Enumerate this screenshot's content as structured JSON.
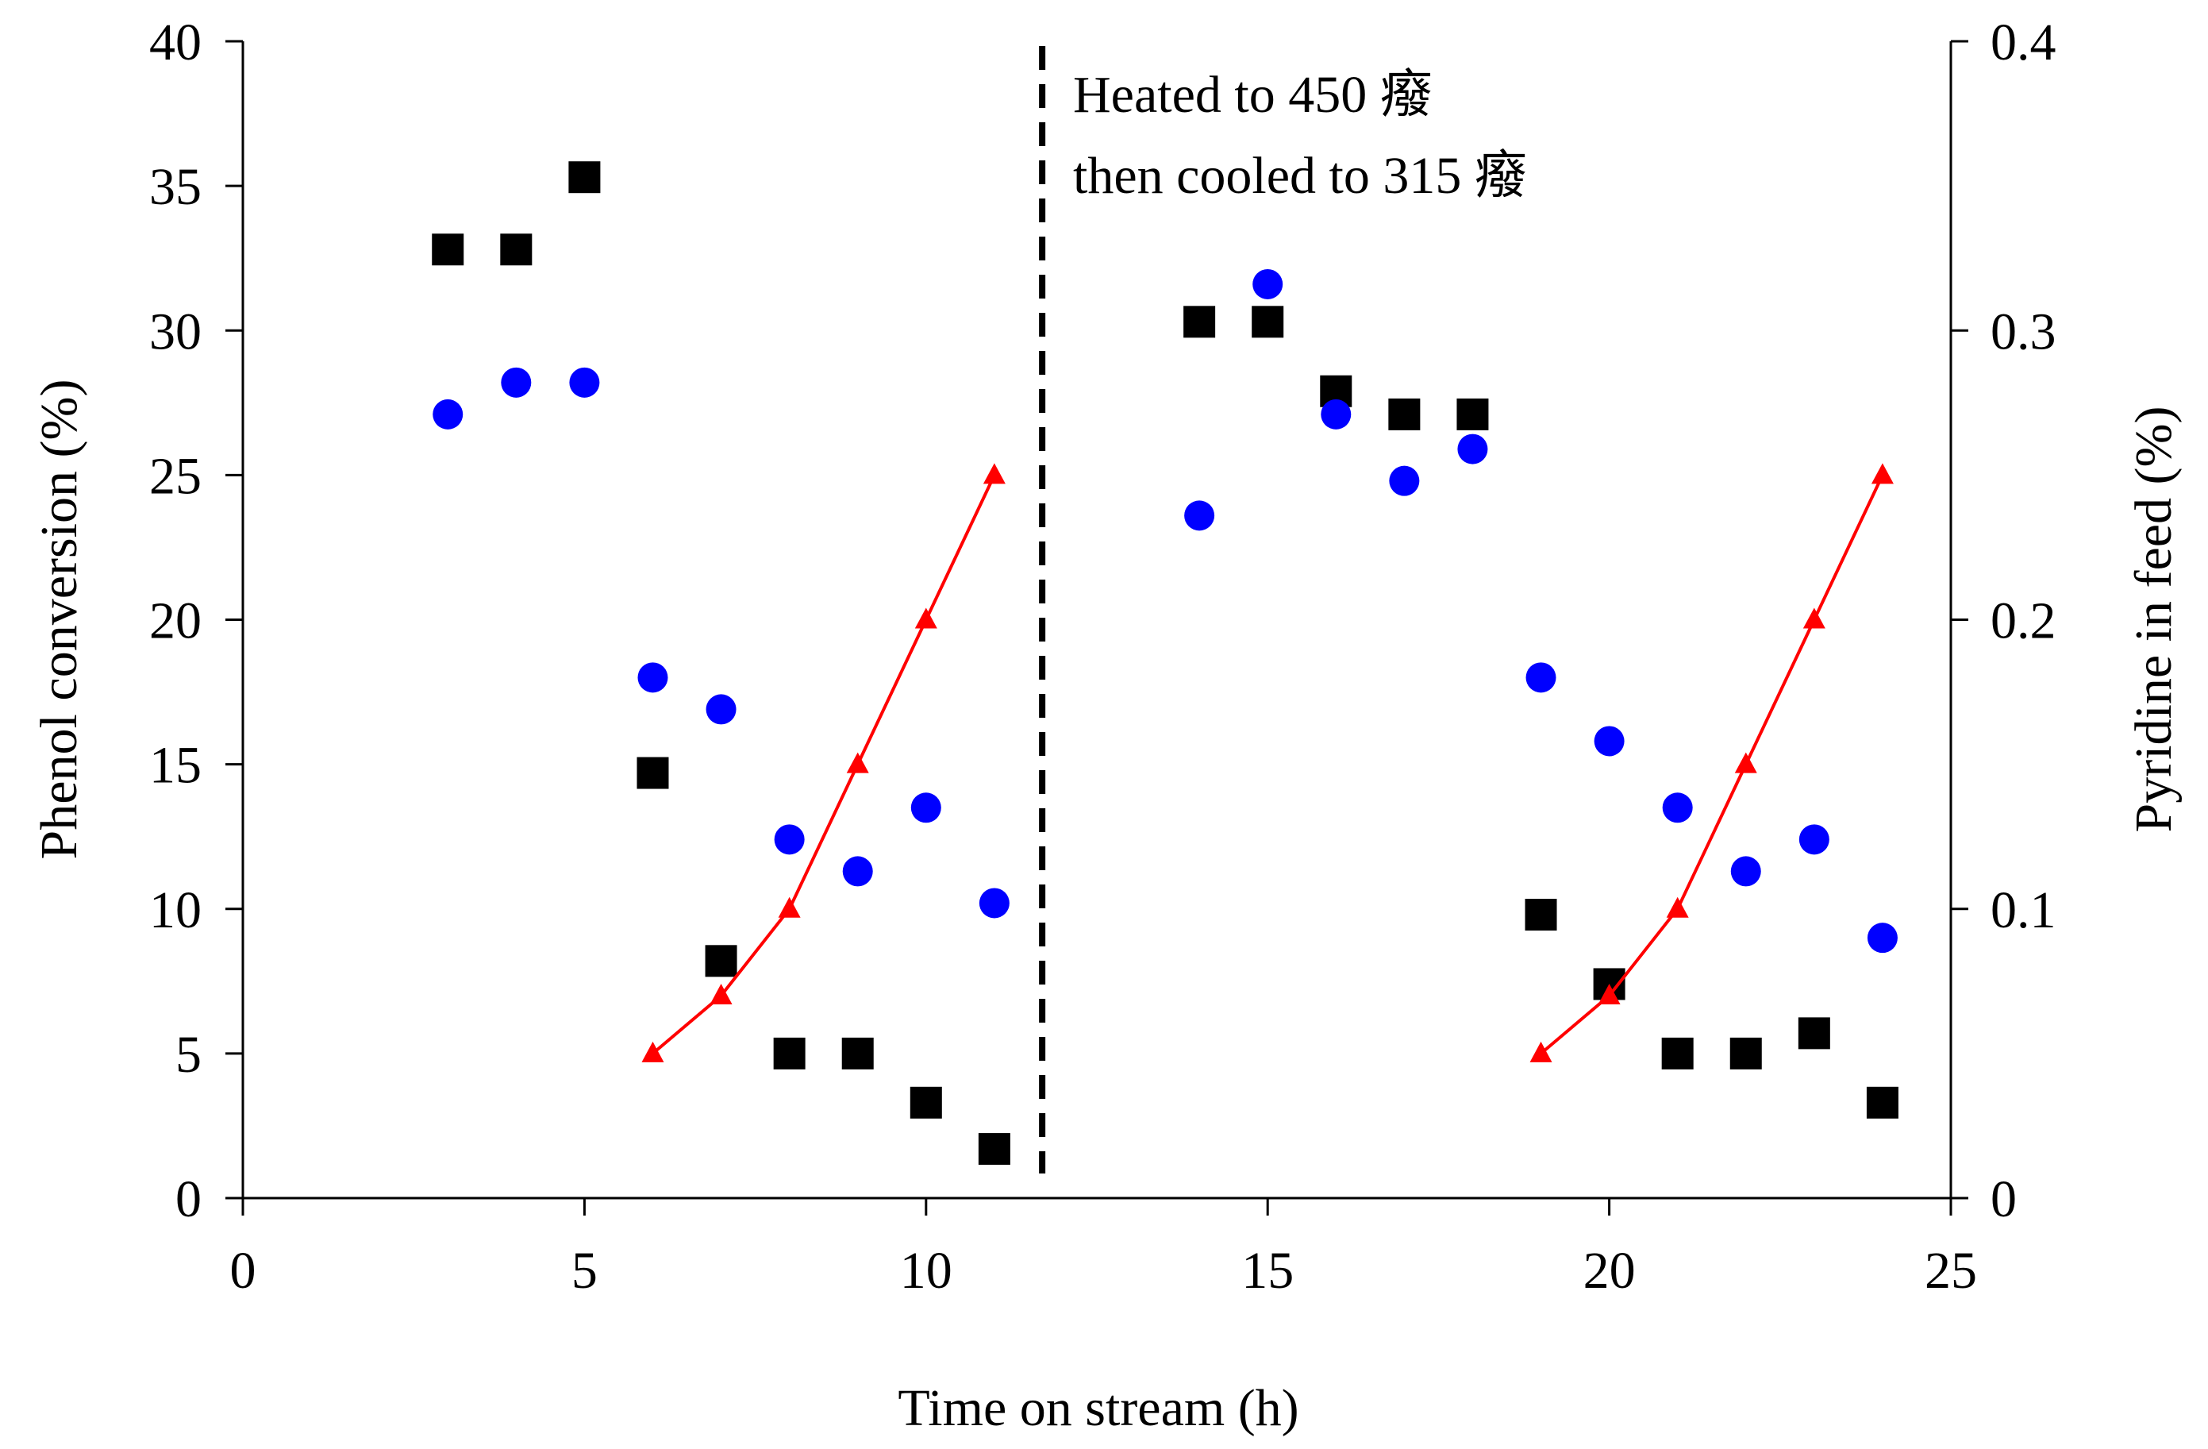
{
  "chart_data": {
    "type": "scatter",
    "x_axis": {
      "label": "Time on stream (h)",
      "range": [
        0,
        25
      ],
      "ticks": [
        0,
        5,
        10,
        15,
        20,
        25
      ]
    },
    "y_axis_left": {
      "label": "Phenol conversion (%)",
      "range": [
        0,
        40
      ],
      "ticks": [
        0,
        5,
        10,
        15,
        20,
        25,
        30,
        35,
        40
      ]
    },
    "y_axis_right": {
      "label": "Pyridine in feed (%)",
      "range": [
        0,
        0.4
      ],
      "ticks": [
        "0",
        "0.1",
        "0.2",
        "0.3",
        "0.4"
      ]
    },
    "vertical_marker": {
      "x": 11.7,
      "style": "dashed"
    },
    "annotation": [
      "Heated to 450 癈",
      "then cooled to 315 癈"
    ],
    "grid": false,
    "legend": "none",
    "series": [
      {
        "marker": "square",
        "color": "#000000",
        "axis": "left",
        "points": [
          [
            3,
            32.8
          ],
          [
            4,
            32.8
          ],
          [
            5,
            35.3
          ],
          [
            6,
            14.7
          ],
          [
            7,
            8.2
          ],
          [
            8,
            5.0
          ],
          [
            9,
            5.0
          ],
          [
            10,
            3.3
          ],
          [
            11,
            1.7
          ],
          [
            14,
            30.3
          ],
          [
            15,
            30.3
          ],
          [
            16,
            27.9
          ],
          [
            17,
            27.1
          ],
          [
            18,
            27.1
          ],
          [
            19,
            9.8
          ],
          [
            20,
            7.4
          ],
          [
            21,
            5.0
          ],
          [
            22,
            5.0
          ],
          [
            23,
            5.7
          ],
          [
            24,
            3.3
          ]
        ]
      },
      {
        "marker": "circle",
        "color": "#0000FF",
        "axis": "left",
        "points": [
          [
            3,
            27.1
          ],
          [
            4,
            28.2
          ],
          [
            5,
            28.2
          ],
          [
            6,
            18.0
          ],
          [
            7,
            16.9
          ],
          [
            8,
            12.4
          ],
          [
            9,
            11.3
          ],
          [
            10,
            13.5
          ],
          [
            11,
            10.2
          ],
          [
            14,
            23.6
          ],
          [
            15,
            31.6
          ],
          [
            16,
            27.1
          ],
          [
            17,
            24.8
          ],
          [
            18,
            25.9
          ],
          [
            19,
            18.0
          ],
          [
            20,
            15.8
          ],
          [
            21,
            13.5
          ],
          [
            22,
            11.3
          ],
          [
            23,
            12.4
          ],
          [
            24,
            9.0
          ]
        ]
      },
      {
        "marker": "triangle",
        "color": "#FF0000",
        "axis": "right",
        "connected": true,
        "segments": [
          [
            [
              6,
              0.05
            ],
            [
              7,
              0.07
            ],
            [
              8,
              0.1
            ],
            [
              9,
              0.15
            ],
            [
              10,
              0.2
            ],
            [
              11,
              0.25
            ]
          ],
          [
            [
              19,
              0.05
            ],
            [
              20,
              0.07
            ],
            [
              21,
              0.1
            ],
            [
              22,
              0.15
            ],
            [
              23,
              0.2
            ],
            [
              24,
              0.25
            ]
          ]
        ]
      }
    ]
  }
}
